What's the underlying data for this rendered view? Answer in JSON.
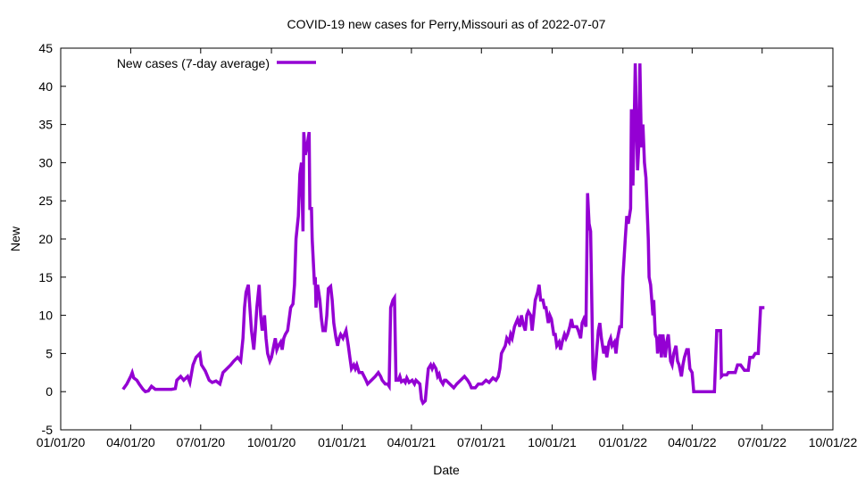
{
  "chart_data": {
    "type": "line",
    "title": "COVID-19 new cases for Perry,Missouri as of 2022-07-07",
    "xlabel": "Date",
    "ylabel": "New",
    "ylim": [
      -5,
      45
    ],
    "xlim": [
      0,
      1004
    ],
    "x_units": "days since 01/01/20",
    "yticks": [
      -5,
      0,
      5,
      10,
      15,
      20,
      25,
      30,
      35,
      40,
      45
    ],
    "xticks": [
      {
        "label": "01/01/20",
        "day": 0
      },
      {
        "label": "04/01/20",
        "day": 91
      },
      {
        "label": "07/01/20",
        "day": 182
      },
      {
        "label": "10/01/20",
        "day": 274
      },
      {
        "label": "01/01/21",
        "day": 366
      },
      {
        "label": "04/01/21",
        "day": 456
      },
      {
        "label": "07/01/21",
        "day": 547
      },
      {
        "label": "10/01/21",
        "day": 639
      },
      {
        "label": "01/01/22",
        "day": 731
      },
      {
        "label": "04/01/22",
        "day": 821
      },
      {
        "label": "07/01/22",
        "day": 912
      },
      {
        "label": "10/01/22",
        "day": 1004
      }
    ],
    "grid": false,
    "legend_position": "top-left",
    "series": [
      {
        "name": "New cases (7-day average)",
        "color": "#9400d3",
        "x": [
          81,
          86,
          91,
          93,
          95,
          99,
          102,
          107,
          110,
          114,
          118,
          123,
          130,
          137,
          144,
          149,
          151,
          156,
          160,
          165,
          168,
          172,
          176,
          181,
          183,
          188,
          193,
          197,
          202,
          207,
          211,
          216,
          221,
          225,
          230,
          234,
          237,
          239,
          241,
          244,
          246,
          248,
          251,
          253,
          255,
          258,
          260,
          262,
          265,
          267,
          269,
          272,
          274,
          276,
          279,
          281,
          283,
          286,
          288,
          290,
          292,
          295,
          297,
          299,
          302,
          304,
          306,
          309,
          311,
          313,
          315,
          316,
          318,
          320,
          323,
          324,
          326,
          327,
          330,
          331,
          332,
          334,
          337,
          339,
          341,
          344,
          346,
          348,
          351,
          353,
          355,
          358,
          360,
          362,
          364,
          367,
          369,
          371,
          374,
          376,
          378,
          381,
          383,
          385,
          388,
          392,
          397,
          399,
          404,
          409,
          413,
          416,
          418,
          422,
          425,
          427,
          429,
          432,
          434,
          436,
          439,
          441,
          443,
          446,
          448,
          450,
          453,
          457,
          460,
          462,
          467,
          469,
          471,
          474,
          476,
          478,
          481,
          483,
          485,
          488,
          490,
          492,
          494,
          497,
          499,
          501,
          506,
          511,
          515,
          520,
          525,
          529,
          532,
          534,
          539,
          543,
          548,
          553,
          557,
          562,
          566,
          569,
          571,
          573,
          578,
          580,
          583,
          585,
          587,
          590,
          592,
          594,
          597,
          599,
          601,
          604,
          606,
          608,
          611,
          613,
          615,
          617,
          620,
          622,
          624,
          627,
          629,
          631,
          634,
          636,
          638,
          641,
          643,
          645,
          648,
          650,
          652,
          655,
          657,
          659,
          662,
          664,
          666,
          669,
          671,
          673,
          676,
          678,
          680,
          683,
          685,
          687,
          689,
          692,
          694,
          696,
          699,
          701,
          703,
          706,
          708,
          710,
          713,
          715,
          717,
          720,
          722,
          724,
          727,
          729,
          731,
          734,
          736,
          738,
          741,
          742,
          744,
          746,
          747,
          750,
          752,
          753,
          755,
          757,
          759,
          761,
          764,
          765,
          767,
          770,
          771,
          773,
          775,
          776,
          779,
          781,
          783,
          786,
          788,
          790,
          793,
          795,
          797,
          800,
          802,
          804,
          807,
          809,
          811,
          814,
          816,
          818,
          821,
          823,
          850,
          853,
          855,
          858,
          859,
          861,
          866,
          868,
          873,
          877,
          880,
          884,
          889,
          894,
          896,
          900,
          903,
          907,
          910,
          915
        ],
        "y": [
          0.3,
          1,
          2,
          2.5,
          1.8,
          1.5,
          1,
          0.3,
          0,
          0.1,
          0.7,
          0.3,
          0.3,
          0.3,
          0.3,
          0.4,
          1.5,
          2,
          1.5,
          2,
          1.2,
          3.5,
          4.5,
          5,
          3.5,
          2.7,
          1.5,
          1.2,
          1.4,
          1,
          2.5,
          3,
          3.5,
          4,
          4.5,
          4,
          7,
          11,
          13,
          14,
          11,
          8,
          5.5,
          8,
          11,
          14,
          10,
          8,
          10,
          7,
          5,
          4,
          4.5,
          5.5,
          7,
          5.5,
          6,
          6.5,
          5.5,
          7,
          7.5,
          8,
          9.5,
          11,
          11.5,
          14,
          20,
          23,
          28.5,
          30,
          21,
          34,
          31,
          32,
          34,
          24,
          24,
          20,
          14,
          15,
          11,
          14,
          12,
          9.5,
          8,
          8,
          10,
          13.5,
          13.8,
          12,
          9,
          7,
          6,
          7,
          7.5,
          7,
          7.5,
          8,
          6,
          4.5,
          3,
          3.5,
          3,
          3.5,
          2.5,
          2.5,
          1.5,
          1,
          1.5,
          2,
          2.5,
          2,
          1.5,
          1,
          1,
          0.7,
          11,
          12,
          12.3,
          1.5,
          1.5,
          2,
          1.3,
          1.5,
          1.2,
          1.8,
          1.2,
          1.5,
          1,
          1.5,
          1,
          -1,
          -1.5,
          -1.2,
          1,
          3,
          3.5,
          3,
          3.5,
          3,
          2,
          2.3,
          1.5,
          1,
          1.5,
          1.5,
          1,
          0.5,
          1,
          1.5,
          2,
          1.5,
          1,
          0.5,
          0.5,
          1,
          1,
          1.5,
          1.2,
          1.8,
          1.5,
          2,
          3,
          5,
          6,
          7,
          6.5,
          7.5,
          7,
          8.5,
          9,
          9.5,
          8.5,
          10,
          9,
          8,
          10,
          10.5,
          10,
          8,
          10,
          12,
          13,
          14,
          12,
          12,
          11,
          11,
          9,
          10,
          9.5,
          7.5,
          7.5,
          6,
          6.5,
          5.5,
          6.5,
          7.5,
          7,
          7.5,
          8.5,
          9.5,
          8.5,
          8.5,
          8.5,
          8,
          7,
          9,
          9.5,
          8.5,
          26,
          22,
          21,
          3,
          1.5,
          4,
          8,
          9,
          7,
          5,
          6,
          4.5,
          6.5,
          7,
          6,
          6.5,
          5,
          7,
          8.5,
          8.5,
          15,
          20,
          23,
          22,
          24,
          37,
          27,
          37,
          43,
          29,
          33,
          43,
          32,
          35,
          30,
          28,
          20,
          15,
          14,
          10,
          12,
          7.5,
          7,
          5,
          7.5,
          4.5,
          7.5,
          4.5,
          6.5,
          7.5,
          4,
          3.5,
          5,
          6,
          4,
          3.5,
          2,
          3.5,
          4.5,
          5.5,
          5.5,
          3,
          2.5,
          0,
          0,
          8,
          8,
          8,
          2,
          2.2,
          2.2,
          2.5,
          2.5,
          2.5,
          3.5,
          3.5,
          2.8,
          2.8,
          4.5,
          4.5,
          5,
          5,
          11,
          11
        ]
      }
    ]
  }
}
